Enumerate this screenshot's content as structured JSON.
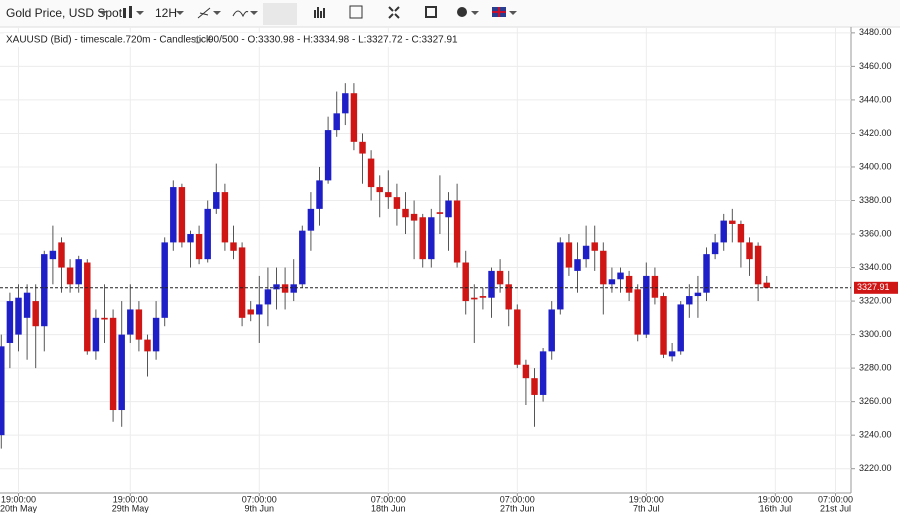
{
  "toolbar": {
    "instrument": "Gold Price, USD Spot",
    "period": "12H"
  },
  "chart_data": {
    "type": "candlestick",
    "title": "XAUUSD (Bid) - timescale.720m - Candlestick",
    "subtitle": "90/500 - O:3330.98 - H:3334.98 - L:3327.72 - C:3327.91",
    "up_color": "#1f1fc8",
    "down_color": "#d01515",
    "grid": true,
    "open": [
      3240,
      3295,
      3300,
      3310,
      3320,
      3305,
      3345,
      3355,
      3340,
      3330,
      3343,
      3290,
      3310,
      3310,
      3255,
      3300,
      3315,
      3297,
      3290,
      3310,
      3355,
      3388,
      3355,
      3360,
      3345,
      3375,
      3385,
      3355,
      3352,
      3315,
      3312,
      3318,
      3327,
      3330,
      3325,
      3330,
      3362,
      3375,
      3392,
      3422,
      3432,
      3444,
      3415,
      3405,
      3388,
      3385,
      3382,
      3375,
      3372,
      3370,
      3345,
      3373,
      3370,
      3380,
      3343,
      3322,
      3323,
      3322,
      3338,
      3330,
      3315,
      3282,
      3274,
      3264,
      3290,
      3315,
      3355,
      3338,
      3345,
      3355,
      3350,
      3330,
      3333,
      3335,
      3327,
      3300,
      3335,
      3323,
      3287,
      3290,
      3318,
      3323,
      3325,
      3348,
      3355,
      3368,
      3366,
      3355,
      3353,
      3330.98
    ],
    "high": [
      3300,
      3325,
      3330,
      3330,
      3330,
      3350,
      3365,
      3358,
      3345,
      3347,
      3345,
      3315,
      3330,
      3315,
      3320,
      3330,
      3320,
      3300,
      3320,
      3358,
      3392,
      3390,
      3362,
      3365,
      3380,
      3402,
      3390,
      3365,
      3355,
      3320,
      3335,
      3340,
      3340,
      3340,
      3345,
      3365,
      3385,
      3400,
      3430,
      3445,
      3450,
      3450,
      3420,
      3410,
      3395,
      3398,
      3390,
      3385,
      3380,
      3372,
      3375,
      3395,
      3385,
      3390,
      3350,
      3330,
      3328,
      3340,
      3345,
      3338,
      3318,
      3285,
      3280,
      3292,
      3320,
      3358,
      3360,
      3355,
      3365,
      3365,
      3355,
      3340,
      3340,
      3338,
      3330,
      3343,
      3340,
      3325,
      3295,
      3320,
      3330,
      3335,
      3352,
      3360,
      3372,
      3375,
      3368,
      3358,
      3355,
      3334.98
    ],
    "low": [
      3232,
      3280,
      3290,
      3285,
      3280,
      3290,
      3330,
      3325,
      3325,
      3325,
      3288,
      3285,
      3295,
      3248,
      3245,
      3295,
      3290,
      3275,
      3285,
      3305,
      3350,
      3352,
      3340,
      3342,
      3343,
      3372,
      3350,
      3345,
      3305,
      3308,
      3295,
      3305,
      3315,
      3315,
      3320,
      3328,
      3350,
      3365,
      3390,
      3418,
      3425,
      3410,
      3390,
      3380,
      3370,
      3375,
      3365,
      3360,
      3345,
      3340,
      3340,
      3360,
      3350,
      3340,
      3312,
      3295,
      3315,
      3310,
      3325,
      3305,
      3280,
      3258,
      3245,
      3260,
      3285,
      3312,
      3335,
      3325,
      3340,
      3338,
      3312,
      3325,
      3325,
      3320,
      3296,
      3298,
      3318,
      3286,
      3284,
      3288,
      3310,
      3310,
      3320,
      3345,
      3350,
      3355,
      3340,
      3335,
      3320,
      3327.72
    ],
    "close": [
      3293,
      3320,
      3322,
      3325,
      3305,
      3348,
      3350,
      3340,
      3330,
      3345,
      3290,
      3310,
      3309,
      3255,
      3300,
      3315,
      3297,
      3290,
      3310,
      3355,
      3388,
      3355,
      3360,
      3345,
      3375,
      3385,
      3355,
      3350,
      3310,
      3312,
      3318,
      3327,
      3330,
      3325,
      3330,
      3362,
      3375,
      3392,
      3422,
      3432,
      3444,
      3415,
      3408,
      3388,
      3385,
      3382,
      3375,
      3370,
      3368,
      3345,
      3370,
      3372,
      3380,
      3343,
      3320,
      3321,
      3322,
      3338,
      3330,
      3315,
      3282,
      3274,
      3264,
      3290,
      3315,
      3355,
      3340,
      3345,
      3353,
      3350,
      3330,
      3333,
      3337,
      3325,
      3300,
      3335,
      3322,
      3288,
      3290,
      3318,
      3323,
      3325,
      3348,
      3355,
      3368,
      3366,
      3355,
      3345,
      3330,
      3327.91
    ],
    "xlim": [
      -0.15,
      98.8
    ],
    "ylim": [
      3205.5,
      3483.5
    ],
    "yticks": [
      {
        "value": 3220,
        "label": "3220.00"
      },
      {
        "value": 3240,
        "label": "3240.00"
      },
      {
        "value": 3260,
        "label": "3260.00"
      },
      {
        "value": 3280,
        "label": "3280.00"
      },
      {
        "value": 3300,
        "label": "3300.00"
      },
      {
        "value": 3320,
        "label": "3320.00"
      },
      {
        "value": 3340,
        "label": "3340.00"
      },
      {
        "value": 3360,
        "label": "3360.00"
      },
      {
        "value": 3380,
        "label": "3380.00"
      },
      {
        "value": 3400,
        "label": "3400.00"
      },
      {
        "value": 3420,
        "label": "3420.00"
      },
      {
        "value": 3440,
        "label": "3440.00"
      },
      {
        "value": 3460,
        "label": "3460.00"
      },
      {
        "value": 3480,
        "label": "3480.00"
      }
    ],
    "xticks": [
      {
        "value": 2,
        "label": [
          "19:00:00",
          "20th May"
        ]
      },
      {
        "value": 15,
        "label": [
          "19:00:00",
          "29th May"
        ]
      },
      {
        "value": 30,
        "label": [
          "07:00:00",
          "9th Jun"
        ]
      },
      {
        "value": 45,
        "label": [
          "07:00:00",
          "18th Jun"
        ]
      },
      {
        "value": 60,
        "label": [
          "07:00:00",
          "27th Jun"
        ]
      },
      {
        "value": 75,
        "label": [
          "19:00:00",
          "7th Jul"
        ]
      },
      {
        "value": 90,
        "label": [
          "19:00:00",
          "16th Jul"
        ]
      },
      {
        "value": 97,
        "label": [
          "07:00:00",
          "21st Jul"
        ]
      }
    ]
  }
}
